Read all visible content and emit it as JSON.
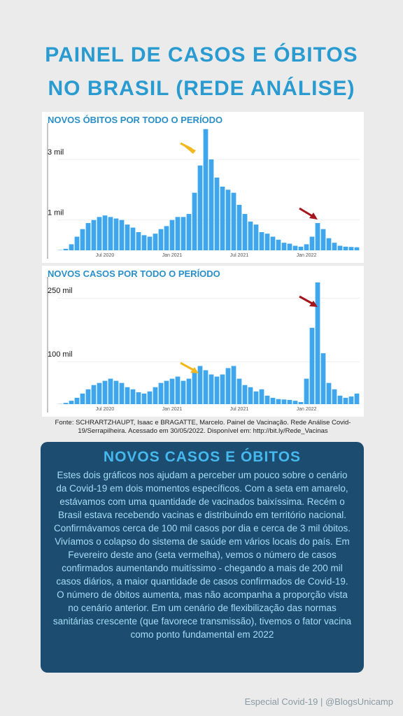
{
  "header": {
    "title_lines": [
      "PAINEL DE CASOS E ÓBITOS",
      "NO BRASIL (REDE ANÁLISE)"
    ]
  },
  "chart_data": [
    {
      "type": "bar",
      "title": "NOVOS ÓBITOS POR TODO O PERÍODO",
      "color": "#3ea6ee",
      "categories": [
        null,
        null,
        null,
        null,
        null,
        null,
        null,
        null,
        "Jul 2020",
        null,
        null,
        null,
        null,
        null,
        null,
        null,
        null,
        null,
        null,
        null,
        "Jan 2021",
        null,
        null,
        null,
        null,
        null,
        null,
        null,
        null,
        null,
        null,
        null,
        "Jul 2021",
        null,
        null,
        null,
        null,
        null,
        null,
        null,
        null,
        null,
        null,
        null,
        "Jan 2022",
        null,
        null,
        null,
        null,
        null,
        null,
        null,
        null,
        null
      ],
      "values": [
        10,
        50,
        200,
        450,
        700,
        900,
        1000,
        1100,
        1150,
        1100,
        1050,
        1000,
        850,
        750,
        600,
        500,
        450,
        550,
        700,
        800,
        1000,
        1100,
        1100,
        1200,
        1900,
        2800,
        4000,
        3000,
        2400,
        2100,
        2000,
        1900,
        1500,
        1200,
        950,
        850,
        600,
        550,
        450,
        350,
        250,
        220,
        150,
        120,
        200,
        450,
        900,
        700,
        400,
        250,
        150,
        120,
        110,
        100
      ],
      "ylim": [
        0,
        4200
      ],
      "yticks": [
        {
          "value": 1000,
          "label": "1 mil"
        },
        {
          "value": 3000,
          "label": "3 mil"
        }
      ]
    },
    {
      "type": "bar",
      "title": "NOVOS CASOS POR TODO O PERÍODO",
      "color": "#3ea6ee",
      "categories": [
        null,
        null,
        null,
        null,
        null,
        null,
        null,
        null,
        "Jul 2020",
        null,
        null,
        null,
        null,
        null,
        null,
        null,
        null,
        null,
        null,
        null,
        "Jan 2021",
        null,
        null,
        null,
        null,
        null,
        null,
        null,
        null,
        null,
        null,
        null,
        "Jul 2021",
        null,
        null,
        null,
        null,
        null,
        null,
        null,
        null,
        null,
        null,
        null,
        "Jan 2022",
        null,
        null,
        null,
        null,
        null,
        null,
        null,
        null,
        null
      ],
      "values": [
        500,
        3000,
        8000,
        15000,
        25000,
        35000,
        45000,
        50000,
        55000,
        60000,
        55000,
        50000,
        40000,
        35000,
        28000,
        25000,
        30000,
        40000,
        50000,
        55000,
        60000,
        65000,
        55000,
        60000,
        80000,
        90000,
        80000,
        70000,
        65000,
        70000,
        85000,
        90000,
        60000,
        45000,
        40000,
        30000,
        35000,
        20000,
        15000,
        12000,
        11000,
        10000,
        8000,
        5000,
        60000,
        180000,
        287000,
        120000,
        50000,
        35000,
        20000,
        15000,
        18000,
        25000
      ],
      "ylim": [
        0,
        300000
      ],
      "yticks": [
        {
          "value": 100000,
          "label": "100 mil"
        },
        {
          "value": 250000,
          "label": "250 mil"
        }
      ]
    }
  ],
  "source": "Fonte: SCHRARTZHAUPT, Isaac e BRAGATTE, Marcelo. Painel de Vacinação. Rede Análise Covid-19/Serrapilheira. Acessado em 30/05/2022. Disponível em: http://bit.ly/Rede_Vacinas",
  "box": {
    "heading": "NOVOS CASOS E ÓBITOS",
    "text": "Estes dois gráficos nos ajudam a perceber um pouco sobre o cenário da Covid-19 em dois momentos específicos. Com a seta em amarelo, estávamos com uma quantidade de vacinados baixíssima. Recém o Brasil estava recebendo vacinas e distribuindo em território nacional. Confirmávamos cerca de 100 mil casos por dia e cerca de 3 mil óbitos. Vivíamos o colapso do sistema de saúde em vários locais do país. Em Fevereiro deste ano (seta vermelha), vemos o número de casos confirmados aumentando muitíssimo - chegando a mais de 200 mil casos diários, a maior quantidade de casos confirmados de Covid-19. O número de óbitos aumenta, mas não acompanha a proporção vista no cenário anterior. Em um cenário de flexibilização das normas sanitárias crescente (que favorece transmissão), tivemos o fator vacina como ponto fundamental em 2022"
  },
  "footer": "Especial Covid-19 | @BlogsUnicamp"
}
